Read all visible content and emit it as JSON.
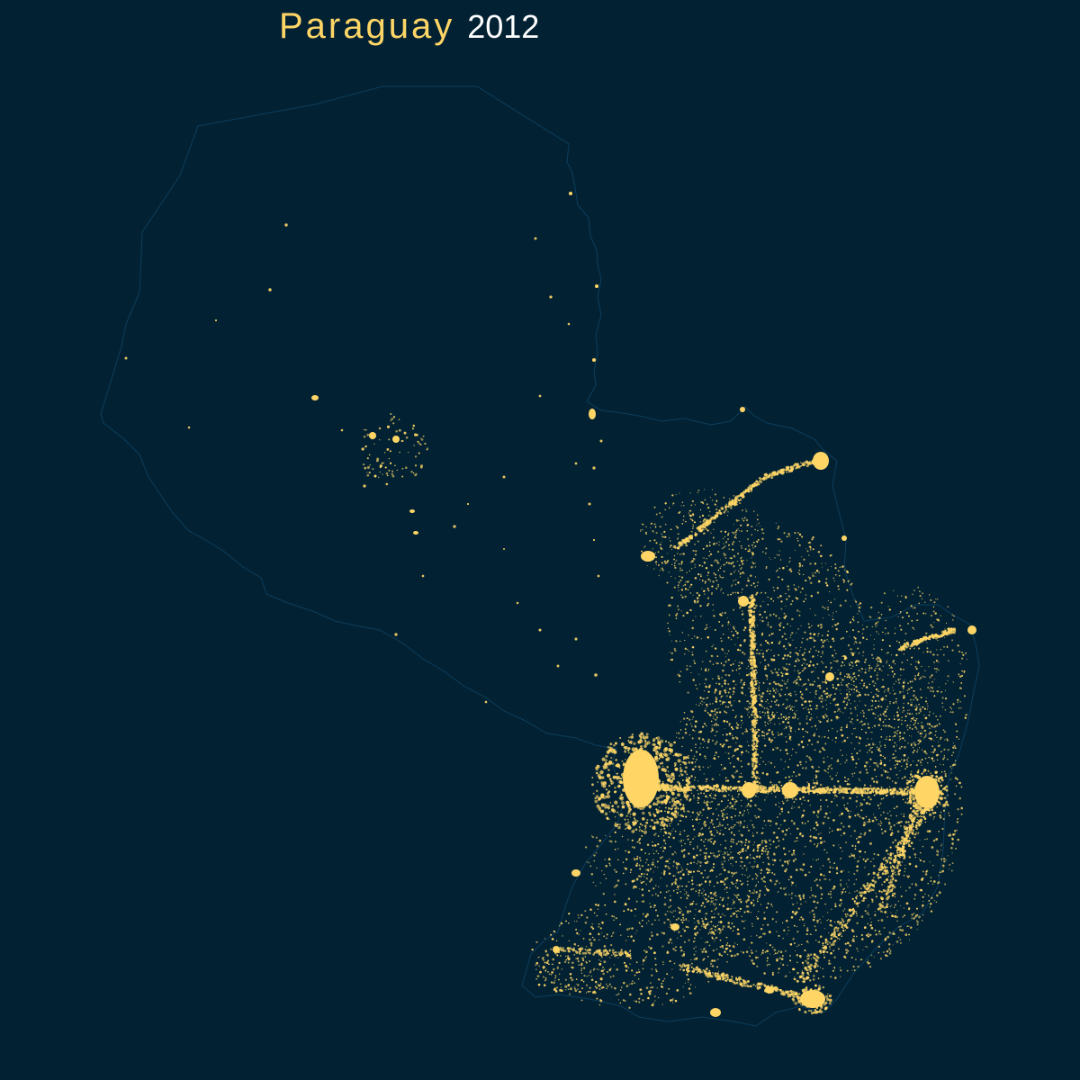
{
  "title": {
    "country": "Paraguay",
    "year": "2012"
  },
  "colors": {
    "background": "#022233",
    "border": "#0e3d5c",
    "lights": "#ffd666",
    "country_text": "#ffd666",
    "year_text": "#ffffff"
  }
}
